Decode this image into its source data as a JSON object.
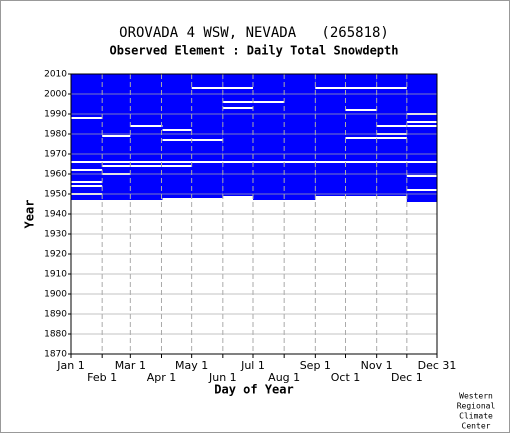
{
  "chart_data": {
    "type": "coverage",
    "title": "OROVADA 4 WSW, NEVADA   (265818)",
    "subtitle": "Observed Element : Daily Total Snowdepth",
    "xlabel": "Day of Year",
    "ylabel": "Year",
    "credit": [
      "Western",
      "Regional",
      "Climate",
      "Center"
    ],
    "color": "#0000ff",
    "grid": true,
    "xlim": [
      1,
      365
    ],
    "ylim": [
      1870,
      2010
    ],
    "yticks": [
      1870,
      1880,
      1890,
      1900,
      1910,
      1920,
      1930,
      1940,
      1950,
      1960,
      1970,
      1980,
      1990,
      2000,
      2010
    ],
    "xticks": [
      {
        "value": 1,
        "label": "Jan 1"
      },
      {
        "value": 32,
        "label": "Feb 1"
      },
      {
        "value": 60,
        "label": "Mar 1"
      },
      {
        "value": 91,
        "label": "Apr 1"
      },
      {
        "value": 121,
        "label": "May 1"
      },
      {
        "value": 152,
        "label": "Jun 1"
      },
      {
        "value": 182,
        "label": "Jul 1"
      },
      {
        "value": 213,
        "label": "Aug 1"
      },
      {
        "value": 244,
        "label": "Sep 1"
      },
      {
        "value": 274,
        "label": "Oct 1"
      },
      {
        "value": 305,
        "label": "Nov 1"
      },
      {
        "value": 335,
        "label": "Dec 1"
      },
      {
        "value": 365,
        "label": "Dec 31"
      }
    ],
    "coverage": [
      {
        "start_day": 1,
        "end_day": 92,
        "start_year": 1947,
        "end_year": 2010
      },
      {
        "start_day": 92,
        "end_day": 152,
        "start_year": 1948,
        "end_year": 2010
      },
      {
        "start_day": 152,
        "end_day": 182,
        "start_year": 1949,
        "end_year": 2010
      },
      {
        "start_day": 182,
        "end_day": 244,
        "start_year": 1947,
        "end_year": 2010
      },
      {
        "start_day": 244,
        "end_day": 305,
        "start_year": 1949,
        "end_year": 2010
      },
      {
        "start_day": 305,
        "end_day": 335,
        "start_year": 1949,
        "end_year": 2010
      },
      {
        "start_day": 335,
        "end_day": 365,
        "start_year": 1946,
        "end_year": 2010
      }
    ],
    "gaps": [
      {
        "year": 1988,
        "start_day": 1,
        "end_day": 32
      },
      {
        "year": 1979,
        "start_day": 32,
        "end_day": 60
      },
      {
        "year": 1984,
        "start_day": 60,
        "end_day": 92
      },
      {
        "year": 1982,
        "start_day": 92,
        "end_day": 121
      },
      {
        "year": 1977,
        "start_day": 92,
        "end_day": 152
      },
      {
        "year": 2003,
        "start_day": 121,
        "end_day": 182
      },
      {
        "year": 1996,
        "start_day": 152,
        "end_day": 213
      },
      {
        "year": 1993,
        "start_day": 152,
        "end_day": 182
      },
      {
        "year": 2003,
        "start_day": 244,
        "end_day": 335
      },
      {
        "year": 1992,
        "start_day": 274,
        "end_day": 305
      },
      {
        "year": 1978,
        "start_day": 274,
        "end_day": 335
      },
      {
        "year": 1966,
        "start_day": 1,
        "end_day": 365
      },
      {
        "year": 1964,
        "start_day": 32,
        "end_day": 121
      },
      {
        "year": 1962,
        "start_day": 1,
        "end_day": 32
      },
      {
        "year": 1960,
        "start_day": 32,
        "end_day": 60
      },
      {
        "year": 1956,
        "start_day": 1,
        "end_day": 32
      },
      {
        "year": 1954,
        "start_day": 1,
        "end_day": 32
      },
      {
        "year": 1950,
        "start_day": 1,
        "end_day": 32
      },
      {
        "year": 1984,
        "start_day": 305,
        "end_day": 365
      },
      {
        "year": 1986,
        "start_day": 335,
        "end_day": 365
      },
      {
        "year": 1990,
        "start_day": 335,
        "end_day": 365
      },
      {
        "year": 1959,
        "start_day": 335,
        "end_day": 365
      },
      {
        "year": 1952,
        "start_day": 335,
        "end_day": 365
      },
      {
        "year": 1980,
        "start_day": 305,
        "end_day": 335
      }
    ]
  }
}
